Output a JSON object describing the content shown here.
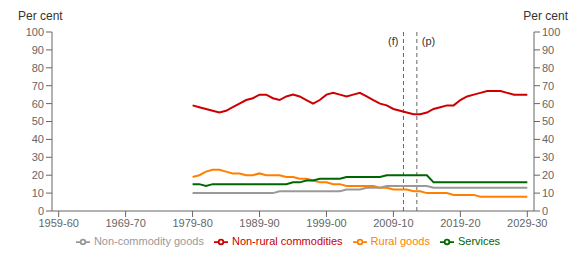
{
  "chart_data": {
    "type": "line",
    "ylabel": "Per cent",
    "y2label": "Per cent",
    "xlim": [
      -1,
      71
    ],
    "xticks": [
      {
        "value": 0,
        "label": "1959-60"
      },
      {
        "value": 10,
        "label": "1969-70"
      },
      {
        "value": 20,
        "label": "1979-80"
      },
      {
        "value": 30,
        "label": "1989-90"
      },
      {
        "value": 40,
        "label": "1999-00"
      },
      {
        "value": 50,
        "label": "2009-10"
      },
      {
        "value": 60,
        "label": "2019-20"
      },
      {
        "value": 70,
        "label": "2029-30"
      }
    ],
    "ylim": [
      0,
      100
    ],
    "yticks": [
      0,
      10,
      20,
      30,
      40,
      50,
      60,
      70,
      80,
      90,
      100
    ],
    "y2lim": [
      0,
      100
    ],
    "y2ticks": [
      0,
      10,
      20,
      30,
      40,
      50,
      60,
      70,
      80,
      90,
      100
    ],
    "grid": false,
    "legend": "bottom",
    "vlines": [
      {
        "x": 51.5,
        "label": "(f)"
      },
      {
        "x": 53.5,
        "label": "(p)"
      }
    ],
    "x": [
      20,
      21,
      22,
      23,
      24,
      25,
      26,
      27,
      28,
      29,
      30,
      31,
      32,
      33,
      34,
      35,
      36,
      37,
      38,
      39,
      40,
      41,
      42,
      43,
      44,
      45,
      46,
      47,
      48,
      49,
      50,
      51,
      52,
      53,
      54,
      55,
      56,
      57,
      58,
      59,
      60,
      61,
      62,
      63,
      64,
      65,
      66,
      67,
      68,
      69,
      70
    ],
    "series": [
      {
        "name": "Non-rural commodities",
        "color": "#cc0000",
        "line_style": "solid",
        "values": [
          59,
          58,
          57,
          56,
          55,
          56,
          58,
          60,
          62,
          63,
          65,
          65,
          63,
          62,
          64,
          65,
          64,
          62,
          60,
          62,
          65,
          66,
          65,
          64,
          65,
          66,
          64,
          62,
          60,
          59,
          57,
          56,
          55,
          54,
          54,
          55,
          57,
          58,
          59,
          59,
          62,
          64,
          65,
          66,
          67,
          67,
          67,
          66,
          65,
          65,
          65
        ]
      },
      {
        "name": "Rural goods",
        "color": "#ff8000",
        "line_style": "solid",
        "values": [
          19,
          20,
          22,
          23,
          23,
          22,
          21,
          21,
          20,
          20,
          21,
          20,
          20,
          20,
          19,
          19,
          18,
          18,
          17,
          16,
          16,
          15,
          15,
          14,
          14,
          14,
          14,
          14,
          13,
          13,
          12,
          12,
          12,
          11,
          11,
          10,
          10,
          10,
          10,
          9,
          9,
          9,
          9,
          8,
          8,
          8,
          8,
          8,
          8,
          8,
          8
        ]
      },
      {
        "name": "Services",
        "color": "#006600",
        "line_style": "solid",
        "values": [
          15,
          15,
          14,
          15,
          15,
          15,
          15,
          15,
          15,
          15,
          15,
          15,
          15,
          15,
          15,
          16,
          16,
          17,
          17,
          18,
          18,
          18,
          18,
          19,
          19,
          19,
          19,
          19,
          19,
          20,
          20,
          20,
          20,
          20,
          20,
          20,
          16,
          16,
          16,
          16,
          16,
          16,
          16,
          16,
          16,
          16,
          16,
          16,
          16,
          16,
          16
        ]
      },
      {
        "name": "Non-commodity goods",
        "color": "#999999",
        "line_style": "solid",
        "values": [
          10,
          10,
          10,
          10,
          10,
          10,
          10,
          10,
          10,
          10,
          10,
          10,
          10,
          11,
          11,
          11,
          11,
          11,
          11,
          11,
          11,
          11,
          11,
          12,
          12,
          12,
          13,
          13,
          13,
          14,
          14,
          14,
          14,
          14,
          14,
          14,
          13,
          13,
          13,
          13,
          13,
          13,
          13,
          13,
          13,
          13,
          13,
          13,
          13,
          13,
          13
        ]
      }
    ]
  }
}
